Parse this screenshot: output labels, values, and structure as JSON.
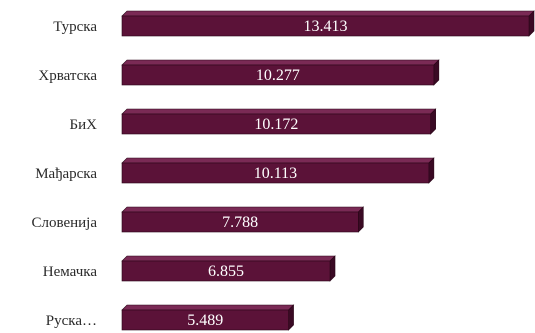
{
  "chart_data": {
    "type": "bar",
    "orientation": "horizontal",
    "style": "3d",
    "categories": [
      "Турска",
      "Хрватска",
      "БиХ",
      "Мађарска",
      "Словенија",
      "Немачка",
      "Руска…"
    ],
    "values": [
      13413,
      10277,
      10172,
      10113,
      7788,
      6855,
      5489
    ],
    "value_labels": [
      "13.413",
      "10.277",
      "10.172",
      "10.113",
      "7.788",
      "6.855",
      "5.489"
    ],
    "title": "",
    "xlabel": "",
    "ylabel": "",
    "xlim": [
      0,
      13413
    ],
    "grid": false,
    "legend": "none",
    "colors": {
      "bar_front": "#5b1238",
      "bar_top": "#7a2a55",
      "bar_side": "#3a0a24",
      "bar_outline": "#2a0618",
      "value_text": "#ffffff",
      "category_text": "#2a2a2a"
    }
  }
}
